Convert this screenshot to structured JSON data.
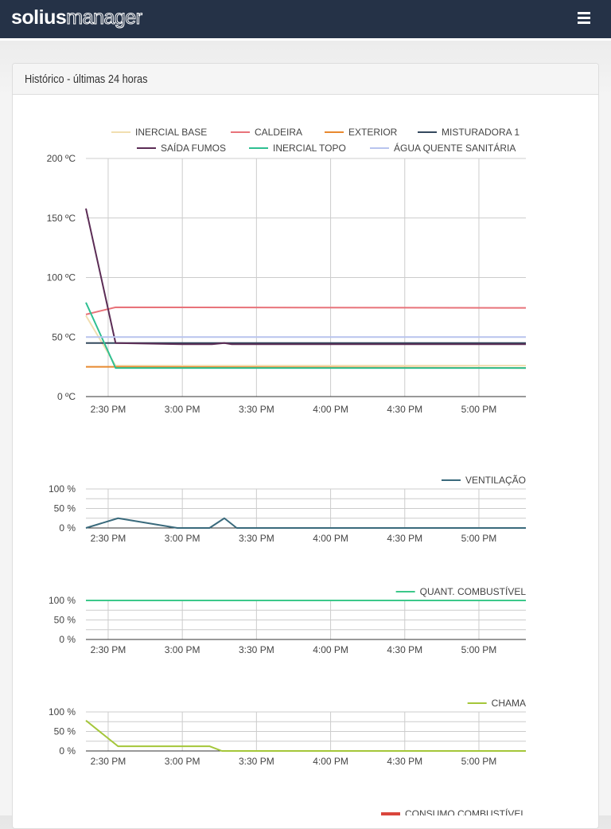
{
  "header": {
    "logo_bold": "solius",
    "logo_outline": "manager",
    "menu_icon": "hamburger-icon"
  },
  "panel": {
    "title": "Histórico - últimas 24 horas"
  },
  "chart_data": [
    {
      "type": "line",
      "ylim": [
        0,
        200
      ],
      "yticks": [
        "0 ºC",
        "50 ºC",
        "100 ºC",
        "150 ºC",
        "200 ºC"
      ],
      "ytick_values": [
        0,
        50,
        100,
        150,
        200
      ],
      "xticks": [
        "2:30 PM",
        "3:00 PM",
        "3:30 PM",
        "4:00 PM",
        "4:30 PM",
        "5:00 PM"
      ],
      "xrange": [
        "14:21",
        "17:19"
      ],
      "legend": "top",
      "grid": true,
      "series": [
        {
          "name": "INERCIAL BASE",
          "color": "#f1deb0",
          "points": [
            [
              "14:21",
              68
            ],
            [
              "14:33",
              26
            ],
            [
              "17:19",
              26
            ]
          ]
        },
        {
          "name": "CALDEIRA",
          "color": "#e8737a",
          "points": [
            [
              "14:21",
              69
            ],
            [
              "14:33",
              75
            ],
            [
              "17:19",
              74.5
            ]
          ]
        },
        {
          "name": "EXTERIOR",
          "color": "#e8892f",
          "points": [
            [
              "14:21",
              25
            ],
            [
              "14:33",
              25
            ],
            [
              "17:19",
              24
            ]
          ]
        },
        {
          "name": "MISTURADORA 1",
          "color": "#34495e",
          "points": [
            [
              "14:21",
              45
            ],
            [
              "17:19",
              45
            ]
          ]
        },
        {
          "name": "SAÍDA FUMOS",
          "color": "#5b2c55",
          "points": [
            [
              "14:21",
              158
            ],
            [
              "14:33",
              45
            ],
            [
              "15:00",
              44
            ],
            [
              "15:12",
              44
            ],
            [
              "15:17",
              45
            ],
            [
              "15:20",
              44
            ],
            [
              "17:19",
              44
            ]
          ]
        },
        {
          "name": "INERCIAL TOPO",
          "color": "#2ebf91",
          "points": [
            [
              "14:21",
              79
            ],
            [
              "14:33",
              24
            ],
            [
              "17:19",
              24
            ]
          ]
        },
        {
          "name": "ÁGUA QUENTE SANITÁRIA",
          "color": "#b8c4ee",
          "points": [
            [
              "14:21",
              50
            ],
            [
              "17:19",
              50
            ]
          ]
        }
      ]
    },
    {
      "type": "line",
      "ylim": [
        0,
        100
      ],
      "yticks": [
        "0 %",
        "50 %",
        "100 %"
      ],
      "ytick_values": [
        0,
        50,
        100
      ],
      "xticks": [
        "2:30 PM",
        "3:00 PM",
        "3:30 PM",
        "4:00 PM",
        "4:30 PM",
        "5:00 PM"
      ],
      "xrange": [
        "14:21",
        "17:19"
      ],
      "legend": "top-right",
      "grid": true,
      "series": [
        {
          "name": "VENTILAÇÃO",
          "color": "#3a6a7c",
          "points": [
            [
              "14:21",
              0
            ],
            [
              "14:34",
              25
            ],
            [
              "14:58",
              0
            ],
            [
              "15:11",
              0
            ],
            [
              "15:17",
              25
            ],
            [
              "15:22",
              0
            ],
            [
              "17:19",
              0
            ]
          ]
        }
      ]
    },
    {
      "type": "line",
      "ylim": [
        0,
        100
      ],
      "yticks": [
        "0 %",
        "50 %",
        "100 %"
      ],
      "ytick_values": [
        0,
        50,
        100
      ],
      "xticks": [
        "2:30 PM",
        "3:00 PM",
        "3:30 PM",
        "4:00 PM",
        "4:30 PM",
        "5:00 PM"
      ],
      "xrange": [
        "14:21",
        "17:19"
      ],
      "legend": "top-right",
      "grid": true,
      "series": [
        {
          "name": "QUANT. COMBUSTÍVEL",
          "color": "#3cc88a",
          "points": [
            [
              "14:21",
              100
            ],
            [
              "17:19",
              100
            ]
          ]
        }
      ]
    },
    {
      "type": "line",
      "ylim": [
        0,
        100
      ],
      "yticks": [
        "0 %",
        "50 %",
        "100 %"
      ],
      "ytick_values": [
        0,
        50,
        100
      ],
      "xticks": [
        "2:30 PM",
        "3:00 PM",
        "3:30 PM",
        "4:00 PM",
        "4:30 PM",
        "5:00 PM"
      ],
      "xrange": [
        "14:21",
        "17:19"
      ],
      "legend": "top-right",
      "grid": true,
      "series": [
        {
          "name": "CHAMA",
          "color": "#a4c639",
          "points": [
            [
              "14:21",
              78
            ],
            [
              "14:34",
              12
            ],
            [
              "15:11",
              12
            ],
            [
              "15:16",
              0
            ],
            [
              "17:19",
              0
            ]
          ]
        }
      ]
    },
    {
      "type": "line",
      "legend": "top-right",
      "series": [
        {
          "name": "CONSUMO COMBUSTÍVEL",
          "color": "#d9463c",
          "points": []
        }
      ]
    }
  ]
}
